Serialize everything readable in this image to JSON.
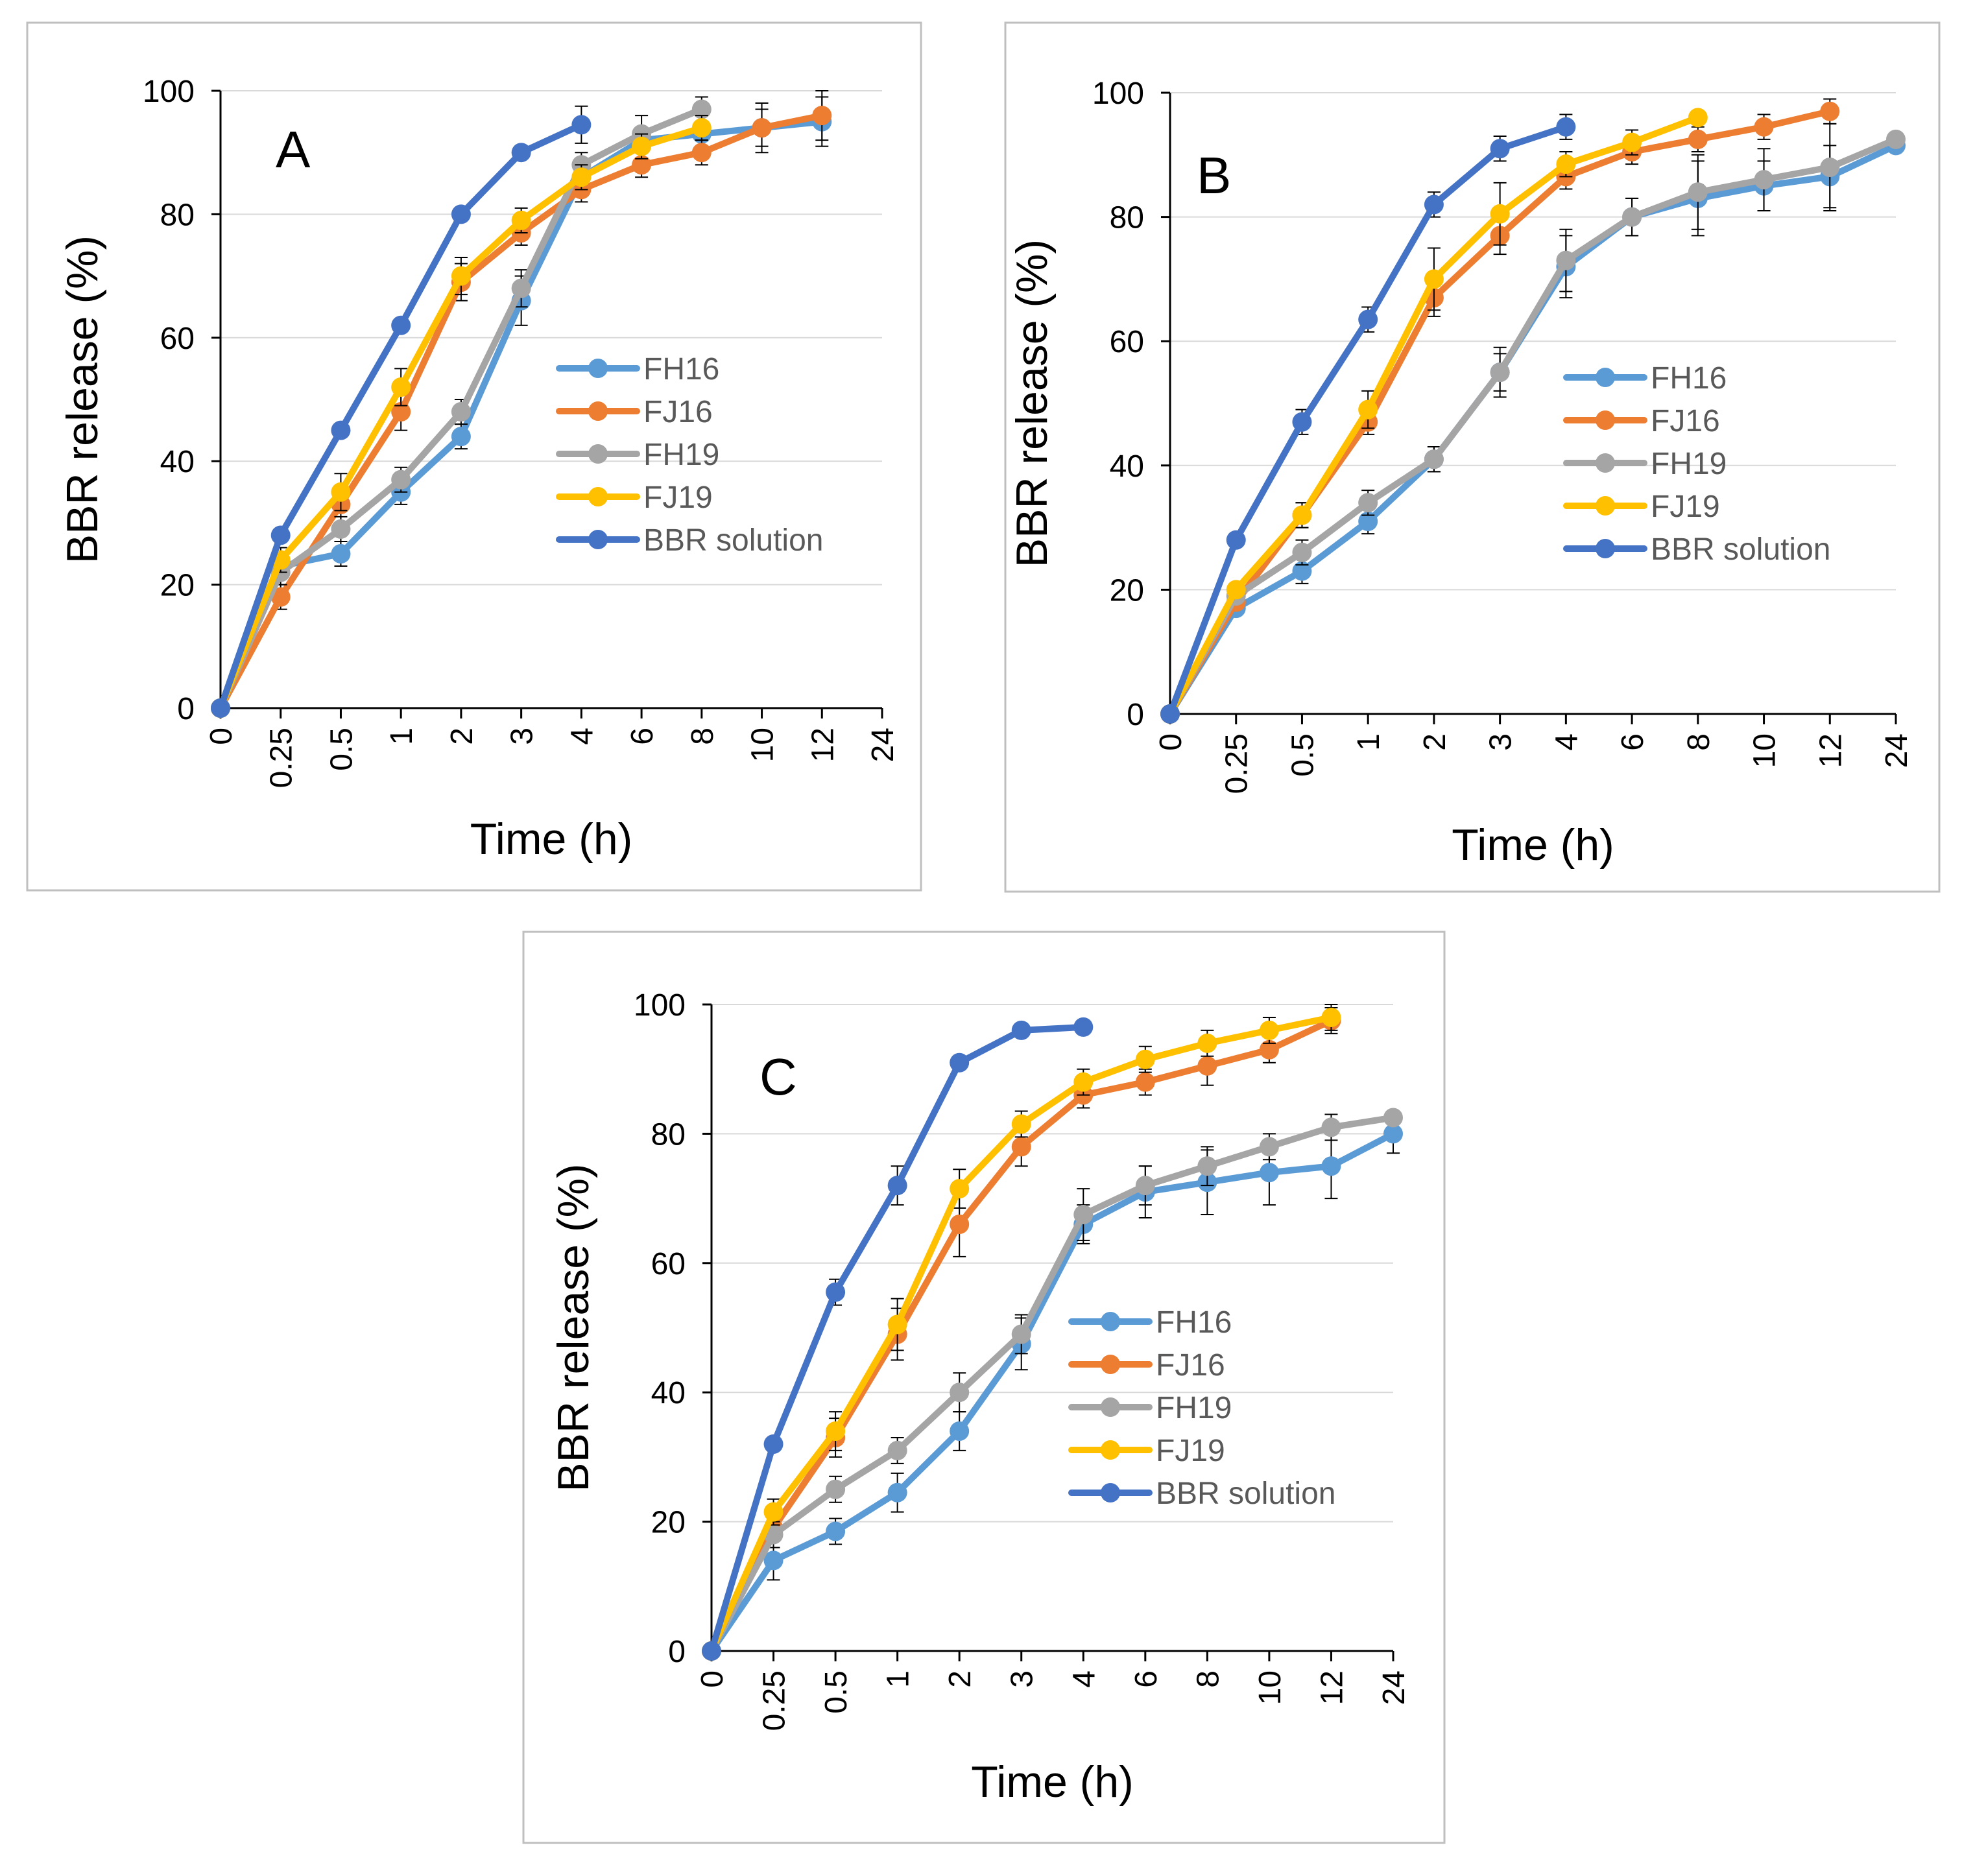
{
  "colors": {
    "FH16": "#5B9BD5",
    "FJ16": "#ED7D31",
    "FH19": "#A5A5A5",
    "FJ19": "#FFC000",
    "BBR solution": "#4472C4",
    "gridline": "#D9D9D9",
    "axis": "#000000",
    "legend_text": "#595959",
    "panel_border": "#BFBFBF"
  },
  "chart_data": [
    {
      "type": "line",
      "panel_label": "A",
      "xlabel": "Time (h)",
      "ylabel": "BBR release (%)",
      "categories": [
        "0",
        "0.25",
        "0.5",
        "1",
        "2",
        "3",
        "4",
        "6",
        "8",
        "10",
        "12",
        "24"
      ],
      "ylim": [
        0,
        100
      ],
      "yticks": [
        "0",
        "20",
        "40",
        "60",
        "80",
        "100"
      ],
      "grid": true,
      "legend_position": "center-right",
      "series": [
        {
          "name": "FH16",
          "values": [
            0,
            23,
            25,
            35,
            44,
            66,
            86,
            92,
            93,
            94,
            95,
            null
          ],
          "errors": [
            0,
            2,
            2,
            2,
            2,
            4,
            3,
            2,
            2,
            3,
            4,
            null
          ]
        },
        {
          "name": "FJ16",
          "values": [
            0,
            18,
            33,
            48,
            69,
            77,
            84,
            88,
            90,
            94,
            96,
            null
          ],
          "errors": [
            0,
            2,
            3,
            3,
            3,
            2,
            2,
            2,
            2,
            4,
            4,
            null
          ]
        },
        {
          "name": "FH19",
          "values": [
            0,
            22,
            29,
            37,
            48,
            68,
            88,
            93,
            97,
            null,
            null,
            null
          ],
          "errors": [
            0,
            2,
            2,
            2,
            2,
            3,
            2,
            3,
            2,
            null,
            null,
            null
          ]
        },
        {
          "name": "FJ19",
          "values": [
            0,
            24,
            35,
            52,
            70,
            79,
            86,
            91,
            94,
            null,
            null,
            null
          ],
          "errors": [
            0,
            2,
            3,
            3,
            3,
            2,
            2,
            2,
            2,
            null,
            null,
            null
          ]
        },
        {
          "name": "BBR solution",
          "values": [
            0,
            28,
            45,
            62,
            80,
            90,
            94.5,
            null,
            null,
            null,
            null,
            null
          ],
          "errors": [
            0,
            1,
            1,
            1,
            1,
            1,
            3,
            null,
            null,
            null,
            null,
            null
          ]
        }
      ]
    },
    {
      "type": "line",
      "panel_label": "B",
      "xlabel": "Time (h)",
      "ylabel": "BBR release (%)",
      "categories": [
        "0",
        "0.25",
        "0.5",
        "1",
        "2",
        "3",
        "4",
        "6",
        "8",
        "10",
        "12",
        "24"
      ],
      "ylim": [
        0,
        100
      ],
      "yticks": [
        "0",
        "20",
        "40",
        "60",
        "80",
        "100"
      ],
      "grid": true,
      "legend_position": "center-right",
      "series": [
        {
          "name": "FH16",
          "values": [
            0,
            17,
            23,
            31,
            41,
            55,
            72,
            80,
            83,
            85,
            86.5,
            91.5
          ],
          "errors": [
            0,
            1,
            2,
            2,
            2,
            3,
            5,
            3,
            6,
            4,
            5,
            1
          ]
        },
        {
          "name": "FJ16",
          "values": [
            0,
            18,
            32,
            47,
            67,
            77,
            86.5,
            90.5,
            92.5,
            94.5,
            97,
            null
          ],
          "errors": [
            0,
            1,
            2,
            2,
            3,
            3,
            2,
            2,
            2,
            2,
            2,
            null
          ]
        },
        {
          "name": "FH19",
          "values": [
            0,
            19,
            26,
            34,
            41,
            55,
            73,
            80,
            84,
            86,
            88,
            92.5
          ],
          "errors": [
            0,
            1,
            2,
            2,
            2,
            4,
            5,
            3,
            6,
            5,
            7,
            1
          ]
        },
        {
          "name": "FJ19",
          "values": [
            0,
            20,
            32,
            49,
            70,
            80.5,
            88.5,
            92,
            96,
            null,
            null,
            null
          ],
          "errors": [
            0,
            1,
            2,
            3,
            5,
            5,
            2,
            2,
            1,
            null,
            null,
            null
          ]
        },
        {
          "name": "BBR solution",
          "values": [
            0,
            28,
            47,
            63.5,
            82,
            91,
            94.5,
            null,
            null,
            null,
            null,
            null
          ],
          "errors": [
            0,
            1,
            2,
            2,
            2,
            2,
            2,
            null,
            null,
            null,
            null,
            null
          ]
        }
      ]
    },
    {
      "type": "line",
      "panel_label": "C",
      "xlabel": "Time (h)",
      "ylabel": "BBR release (%)",
      "categories": [
        "0",
        "0.25",
        "0.5",
        "1",
        "2",
        "3",
        "4",
        "6",
        "8",
        "10",
        "12",
        "24"
      ],
      "ylim": [
        0,
        100
      ],
      "yticks": [
        "0",
        "20",
        "40",
        "60",
        "80",
        "100"
      ],
      "grid": true,
      "legend_position": "center-right",
      "series": [
        {
          "name": "FH16",
          "values": [
            0,
            14,
            18.5,
            24.5,
            34,
            47.5,
            66,
            71,
            72.5,
            74,
            75,
            80
          ],
          "errors": [
            0,
            3,
            2,
            3,
            3,
            4,
            3,
            4,
            5,
            5,
            5,
            3
          ]
        },
        {
          "name": "FJ16",
          "values": [
            0,
            19,
            33,
            49,
            66,
            78,
            86,
            88,
            90.5,
            93,
            97.5,
            null
          ],
          "errors": [
            0,
            2,
            3,
            4,
            5,
            3,
            2,
            2,
            3,
            2,
            2,
            null
          ]
        },
        {
          "name": "FH19",
          "values": [
            0,
            18,
            25,
            31,
            40,
            49,
            67.5,
            72,
            75,
            78,
            81,
            82.5
          ],
          "errors": [
            0,
            2,
            2,
            2,
            3,
            3,
            4,
            3,
            3,
            2,
            2,
            1
          ]
        },
        {
          "name": "FJ19",
          "values": [
            0,
            21.5,
            34,
            50.5,
            71.5,
            81.5,
            88,
            91.5,
            94,
            96,
            98,
            null
          ],
          "errors": [
            0,
            2,
            3,
            4,
            3,
            2,
            2,
            2,
            2,
            2,
            2,
            null
          ]
        },
        {
          "name": "BBR solution",
          "values": [
            0,
            32,
            55.5,
            72,
            91,
            96,
            96.5,
            null,
            null,
            null,
            null,
            null
          ],
          "errors": [
            0,
            1,
            2,
            3,
            1,
            1,
            1,
            null,
            null,
            null,
            null,
            null
          ]
        }
      ]
    }
  ]
}
